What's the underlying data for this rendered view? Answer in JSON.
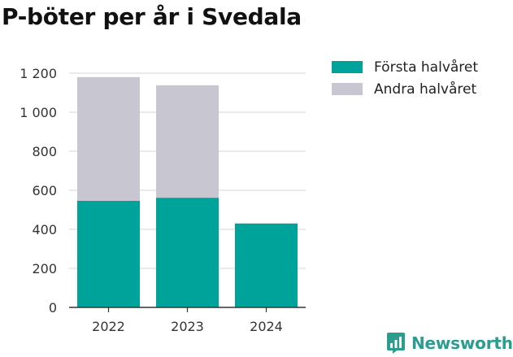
{
  "title": "P-böter per år i Svedala",
  "brand": {
    "name": "Newsworthy",
    "icon": "newsworthy-logo-icon",
    "color": "#2a9d8f"
  },
  "legend": [
    {
      "label": "Första halvåret",
      "color": "#00a39a"
    },
    {
      "label": "Andra halvåret",
      "color": "#c8c7d1"
    }
  ],
  "chart_data": {
    "type": "bar",
    "stacked": true,
    "categories": [
      "2022",
      "2023",
      "2024"
    ],
    "series": [
      {
        "name": "Första halvåret",
        "values": [
          546,
          562,
          430
        ],
        "color": "#00a39a"
      },
      {
        "name": "Andra halvåret",
        "values": [
          634,
          576,
          0
        ],
        "color": "#c8c7d1"
      }
    ],
    "ylim": [
      0,
      1200
    ],
    "yticks": [
      0,
      200,
      400,
      600,
      800,
      1000,
      1200
    ],
    "ytick_labels": [
      "0",
      "200",
      "400",
      "600",
      "800",
      "1 000",
      "1 200"
    ],
    "grid": true,
    "legend_position": "top-right",
    "xlabel": "",
    "ylabel": ""
  }
}
